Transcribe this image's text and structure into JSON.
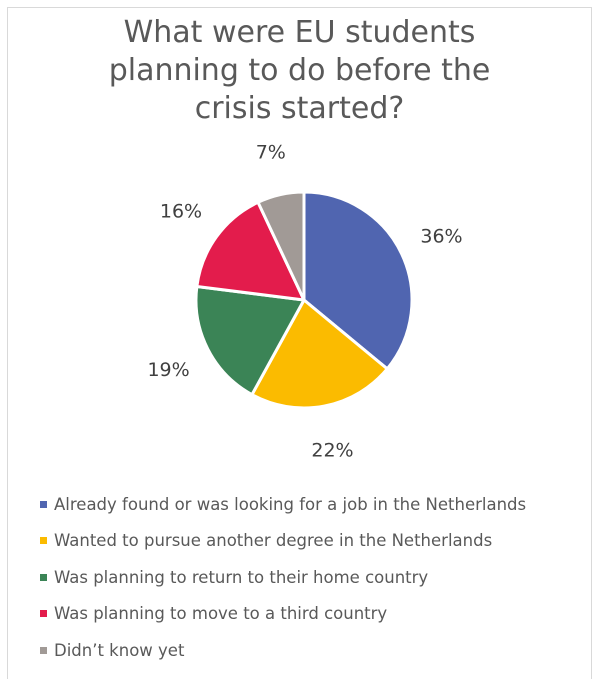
{
  "chart_data": {
    "type": "pie",
    "title_lines": [
      "What were EU students",
      "planning to do before the",
      "crisis started?"
    ],
    "slices": [
      {
        "label": "Already found or was looking for a job in the Netherlands",
        "value": 36,
        "display": "36%",
        "color": "#5065b0"
      },
      {
        "label": "Wanted to pursue another degree in the Netherlands",
        "value": 22,
        "display": "22%",
        "color": "#fbbb00"
      },
      {
        "label": "Was planning to return to their home country",
        "value": 19,
        "display": "19%",
        "color": "#3b8456"
      },
      {
        "label": "Was planning to move to a third country",
        "value": 16,
        "display": "16%",
        "color": "#e31c4c"
      },
      {
        "label": "Didn’t know yet",
        "value": 7,
        "display": "7%",
        "color": "#a19a96"
      }
    ],
    "legend_position": "bottom",
    "start_angle": "12 o'clock, clockwise"
  }
}
